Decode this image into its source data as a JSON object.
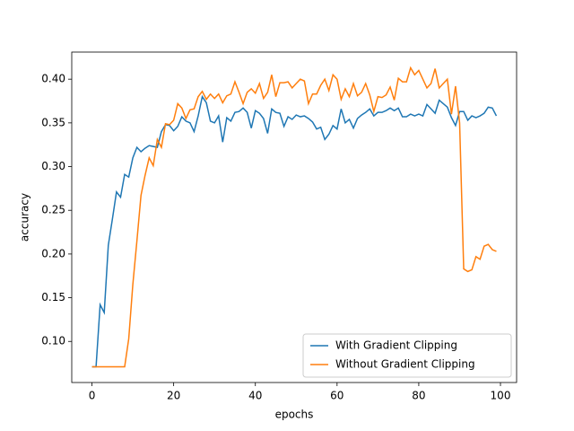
{
  "chart_data": {
    "type": "line",
    "x_label": "epochs",
    "y_label": "accuracy",
    "x": [
      0,
      1,
      2,
      3,
      4,
      5,
      6,
      7,
      8,
      9,
      10,
      11,
      12,
      13,
      14,
      15,
      16,
      17,
      18,
      19,
      20,
      21,
      22,
      23,
      24,
      25,
      26,
      27,
      28,
      29,
      30,
      31,
      32,
      33,
      34,
      35,
      36,
      37,
      38,
      39,
      40,
      41,
      42,
      43,
      44,
      45,
      46,
      47,
      48,
      49,
      50,
      51,
      52,
      53,
      54,
      55,
      56,
      57,
      58,
      59,
      60,
      61,
      62,
      63,
      64,
      65,
      66,
      67,
      68,
      69,
      70,
      71,
      72,
      73,
      74,
      75,
      76,
      77,
      78,
      79,
      80,
      81,
      82,
      83,
      84,
      85,
      86,
      87,
      88,
      89,
      90,
      91,
      92,
      93,
      94,
      95,
      96,
      97,
      98,
      99
    ],
    "series": [
      {
        "name": "With Gradient Clipping",
        "color": "#1f77b4",
        "values": [
          0.071,
          0.071,
          0.142,
          0.133,
          0.21,
          0.24,
          0.271,
          0.265,
          0.291,
          0.288,
          0.31,
          0.322,
          0.317,
          0.321,
          0.324,
          0.323,
          0.322,
          0.34,
          0.348,
          0.347,
          0.341,
          0.346,
          0.357,
          0.352,
          0.35,
          0.34,
          0.358,
          0.38,
          0.373,
          0.352,
          0.35,
          0.358,
          0.328,
          0.356,
          0.352,
          0.362,
          0.363,
          0.367,
          0.362,
          0.344,
          0.364,
          0.361,
          0.355,
          0.338,
          0.366,
          0.362,
          0.361,
          0.346,
          0.357,
          0.354,
          0.359,
          0.357,
          0.358,
          0.355,
          0.351,
          0.343,
          0.345,
          0.331,
          0.337,
          0.347,
          0.343,
          0.366,
          0.35,
          0.354,
          0.344,
          0.355,
          0.359,
          0.362,
          0.366,
          0.358,
          0.362,
          0.362,
          0.364,
          0.367,
          0.364,
          0.367,
          0.357,
          0.357,
          0.36,
          0.358,
          0.36,
          0.358,
          0.371,
          0.366,
          0.361,
          0.376,
          0.372,
          0.368,
          0.356,
          0.347,
          0.363,
          0.363,
          0.353,
          0.358,
          0.356,
          0.358,
          0.361,
          0.368,
          0.367,
          0.358
        ]
      },
      {
        "name": "Without Gradient Clipping",
        "color": "#ff7f0e",
        "values": [
          0.071,
          0.071,
          0.071,
          0.071,
          0.071,
          0.071,
          0.071,
          0.071,
          0.071,
          0.103,
          0.165,
          0.215,
          0.267,
          0.29,
          0.31,
          0.301,
          0.331,
          0.322,
          0.349,
          0.348,
          0.353,
          0.372,
          0.367,
          0.355,
          0.365,
          0.366,
          0.38,
          0.386,
          0.377,
          0.383,
          0.378,
          0.383,
          0.373,
          0.381,
          0.383,
          0.397,
          0.385,
          0.372,
          0.385,
          0.389,
          0.384,
          0.395,
          0.378,
          0.385,
          0.405,
          0.38,
          0.396,
          0.396,
          0.397,
          0.39,
          0.395,
          0.4,
          0.398,
          0.372,
          0.383,
          0.383,
          0.393,
          0.4,
          0.387,
          0.405,
          0.4,
          0.377,
          0.389,
          0.38,
          0.395,
          0.381,
          0.385,
          0.395,
          0.382,
          0.363,
          0.38,
          0.379,
          0.382,
          0.391,
          0.376,
          0.401,
          0.397,
          0.397,
          0.413,
          0.405,
          0.41,
          0.4,
          0.39,
          0.395,
          0.412,
          0.39,
          0.395,
          0.4,
          0.36,
          0.392,
          0.35,
          0.183,
          0.18,
          0.182,
          0.197,
          0.194,
          0.209,
          0.211,
          0.205,
          0.203
        ]
      }
    ],
    "xlim": [
      -4.95,
      103.95
    ],
    "xticks": [
      0,
      20,
      40,
      60,
      80,
      100
    ],
    "ylim": [
      0.053,
      0.431
    ],
    "yticks": [
      {
        "value": 0.1,
        "label": "0.10"
      },
      {
        "value": 0.15,
        "label": "0.15"
      },
      {
        "value": 0.2,
        "label": "0.20"
      },
      {
        "value": 0.25,
        "label": "0.25"
      },
      {
        "value": 0.3,
        "label": "0.30"
      },
      {
        "value": 0.35,
        "label": "0.35"
      },
      {
        "value": 0.4,
        "label": "0.40"
      }
    ],
    "grid": false,
    "legend": "lower right"
  }
}
